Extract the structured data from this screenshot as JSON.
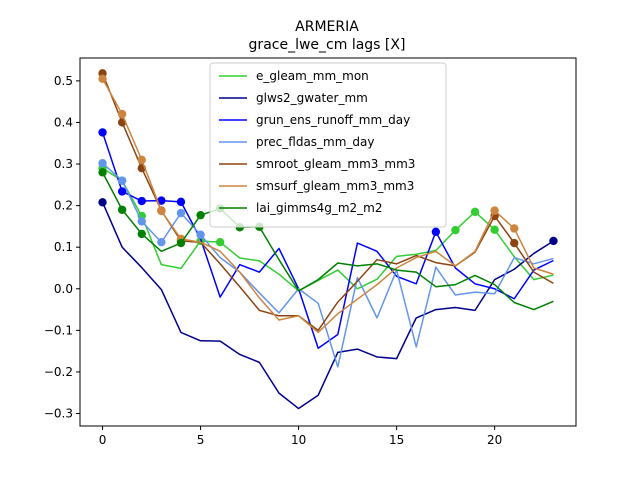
{
  "chart_data": {
    "type": "line",
    "title": "ARMERIA",
    "subtitle": "grace_lwe_cm lags [X]",
    "xlabel": "",
    "ylabel": "",
    "xlim": [
      -1.15,
      24.15
    ],
    "ylim": [
      -0.33,
      0.555
    ],
    "xticks": [
      0,
      5,
      10,
      15,
      20
    ],
    "yticks": [
      -0.3,
      -0.2,
      -0.1,
      0.0,
      0.1,
      0.2,
      0.3,
      0.4,
      0.5
    ],
    "ytick_labels": [
      "−0.3",
      "−0.2",
      "−0.1",
      "0.0",
      "0.1",
      "0.2",
      "0.3",
      "0.4",
      "0.5"
    ],
    "x": [
      0,
      1,
      2,
      3,
      4,
      5,
      6,
      7,
      8,
      9,
      10,
      11,
      12,
      13,
      14,
      15,
      16,
      17,
      18,
      19,
      20,
      21,
      22,
      23
    ],
    "legend_position": "upper center",
    "series": [
      {
        "name": "e_gleam_mm_mon",
        "color": "#32cd32",
        "values": [
          0.29,
          0.26,
          0.175,
          0.058,
          0.049,
          0.115,
          0.112,
          0.074,
          0.067,
          0.035,
          -0.005,
          0.02,
          0.045,
          0.0,
          0.023,
          0.078,
          0.083,
          0.092,
          0.141,
          0.185,
          0.142,
          0.077,
          0.022,
          0.033
        ],
        "markers": [
          0,
          1,
          2,
          5,
          6,
          18,
          19,
          20
        ]
      },
      {
        "name": "glws2_gwater_mm",
        "color": "#00008b",
        "values": [
          0.208,
          0.1,
          0.051,
          -0.002,
          -0.105,
          -0.125,
          -0.126,
          -0.158,
          -0.177,
          -0.251,
          -0.288,
          -0.256,
          -0.153,
          -0.145,
          -0.164,
          -0.168,
          -0.07,
          -0.05,
          -0.045,
          -0.052,
          0.022,
          0.047,
          0.085,
          0.115
        ],
        "markers": [
          0,
          23
        ]
      },
      {
        "name": "grun_ens_runoff_mm_day",
        "color": "#0000ff",
        "values": [
          0.376,
          0.234,
          0.211,
          0.212,
          0.209,
          0.12,
          -0.02,
          0.058,
          0.04,
          0.097,
          0.0,
          -0.143,
          -0.11,
          0.11,
          0.09,
          0.03,
          0.012,
          0.137,
          0.05,
          0.012,
          0.0,
          -0.024,
          0.045,
          0.068
        ],
        "markers": [
          0,
          1,
          2,
          3,
          4,
          17
        ]
      },
      {
        "name": "prec_fldas_mm_day",
        "color": "#6495ed",
        "values": [
          0.302,
          0.26,
          0.162,
          0.112,
          0.182,
          0.13,
          0.075,
          0.04,
          -0.01,
          -0.058,
          0.0,
          -0.035,
          -0.188,
          0.027,
          -0.07,
          0.045,
          -0.14,
          0.052,
          -0.015,
          -0.008,
          -0.012,
          0.075,
          0.06,
          0.073
        ],
        "markers": [
          0,
          1,
          2,
          3,
          4,
          5
        ]
      },
      {
        "name": "smroot_gleam_mm3_mm3",
        "color": "#8b4513",
        "values": [
          0.518,
          0.4,
          0.29,
          0.188,
          0.115,
          0.112,
          0.06,
          0.005,
          -0.052,
          -0.065,
          -0.065,
          -0.1,
          -0.032,
          0.018,
          0.07,
          0.06,
          0.08,
          0.063,
          0.055,
          0.088,
          0.175,
          0.11,
          0.04,
          0.013
        ],
        "markers": [
          0,
          1,
          2,
          3,
          4,
          20,
          21
        ]
      },
      {
        "name": "smsurf_gleam_mm3_mm3",
        "color": "#cd853f",
        "values": [
          0.505,
          0.42,
          0.31,
          0.187,
          0.12,
          0.112,
          0.09,
          0.04,
          -0.022,
          -0.075,
          -0.065,
          -0.105,
          -0.06,
          -0.025,
          0.01,
          0.05,
          0.075,
          0.09,
          0.055,
          0.09,
          0.188,
          0.145,
          0.05,
          0.035
        ],
        "markers": [
          0,
          1,
          2,
          3,
          4,
          20,
          21
        ]
      },
      {
        "name": "lai_gimms4g_m2_m2",
        "color": "#008000",
        "values": [
          0.28,
          0.19,
          0.132,
          0.09,
          0.11,
          0.177,
          0.193,
          0.148,
          0.149,
          0.07,
          -0.005,
          0.022,
          0.062,
          0.055,
          0.06,
          0.045,
          0.04,
          0.005,
          0.01,
          0.032,
          0.01,
          -0.033,
          -0.05,
          -0.03
        ],
        "markers": [
          0,
          1,
          2,
          4,
          5,
          6,
          7,
          8
        ]
      }
    ]
  }
}
